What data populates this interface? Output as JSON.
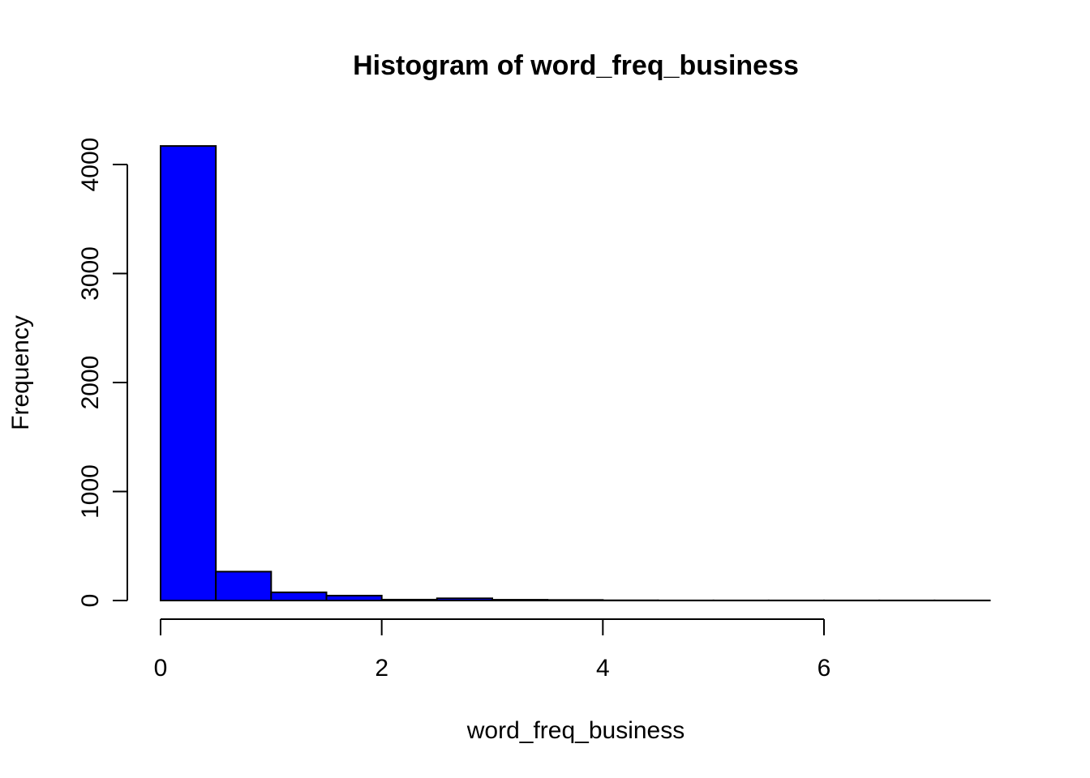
{
  "chart_data": {
    "type": "bar",
    "title": "Histogram of word_freq_business",
    "xlabel": "word_freq_business",
    "ylabel": "Frequency",
    "bin_edges": [
      0,
      0.5,
      1,
      1.5,
      2,
      2.5,
      3,
      3.5,
      4,
      4.5,
      5,
      5.5,
      6,
      6.5,
      7,
      7.5
    ],
    "values": [
      4170,
      265,
      75,
      45,
      8,
      20,
      7,
      5,
      2,
      1,
      1,
      1,
      1,
      1,
      1
    ],
    "bar_color": "#0000FF",
    "bar_edge_color": "#000000",
    "xlim": [
      0,
      7.5
    ],
    "ylim": [
      0,
      4170
    ],
    "x_ticks": [
      0,
      2,
      4,
      6
    ],
    "x_tick_labels": [
      "0",
      "2",
      "4",
      "6"
    ],
    "y_ticks": [
      0,
      1000,
      2000,
      3000,
      4000
    ],
    "y_tick_labels": [
      "0",
      "1000",
      "2000",
      "3000",
      "4000"
    ],
    "grid": false,
    "legend": "none"
  }
}
